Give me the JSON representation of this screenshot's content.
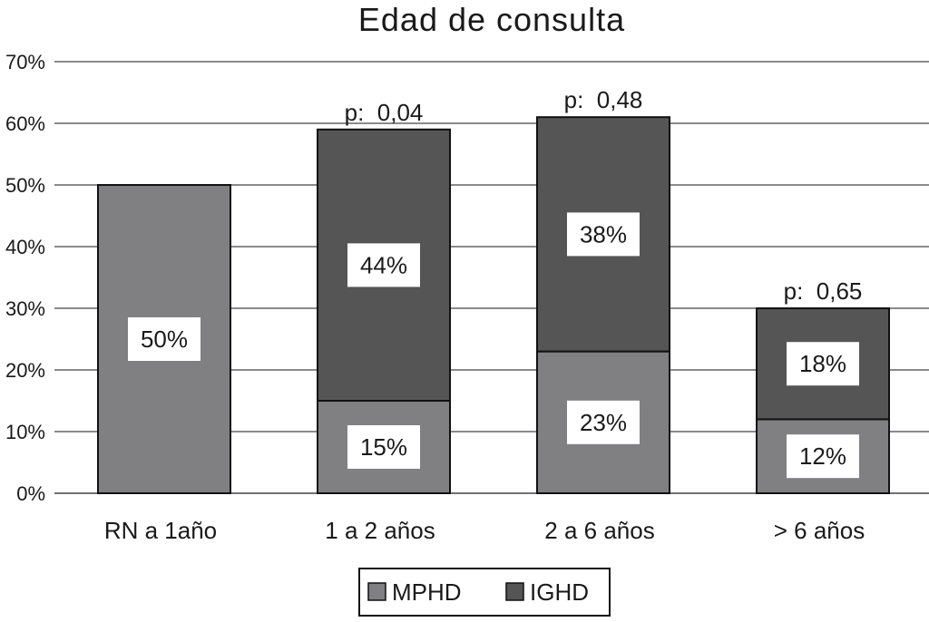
{
  "chart_data": {
    "type": "bar",
    "stacked": true,
    "title": "Edad de consulta",
    "categories": [
      "RN a 1año",
      "1 a 2 años",
      "2 a 6 años",
      "> 6 años"
    ],
    "series": [
      {
        "name": "MPHD",
        "values": [
          50,
          15,
          23,
          12
        ],
        "labels": [
          "50%",
          "15%",
          "23%",
          "12%"
        ],
        "color": "#808083"
      },
      {
        "name": "IGHD",
        "values": [
          0,
          44,
          38,
          18
        ],
        "labels": [
          "",
          "44%",
          "38%",
          "18%"
        ],
        "color": "#555555"
      }
    ],
    "annotations": [
      "",
      "p:  0,04",
      "p:  0,48",
      "p:  0,65"
    ],
    "y_ticks": [
      "0%",
      "10%",
      "20%",
      "30%",
      "40%",
      "50%",
      "60%",
      "70%"
    ],
    "ylim": [
      0,
      70
    ],
    "grid": true,
    "legend_position": "bottom"
  }
}
